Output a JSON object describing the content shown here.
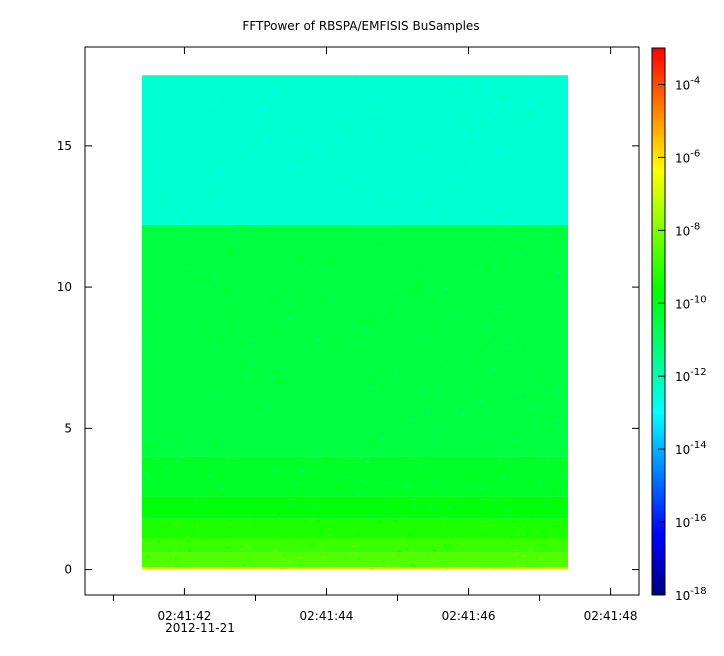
{
  "chart_data": {
    "type": "heatmap",
    "title": "FFTPower of RBSPA/EMFISIS  BuSamples",
    "xlabel": "",
    "ylabel": "",
    "x_start_label": "02:41:42",
    "x_date_label": "2012-11-21",
    "x_tick_labels": [
      "02:41:42",
      "02:41:44",
      "02:41:46",
      "02:41:48"
    ],
    "x_tick_seconds": [
      42,
      44,
      46,
      48
    ],
    "x_minor_tick_seconds": [
      41,
      43,
      45,
      47
    ],
    "xlim_seconds": [
      40.6,
      48.4
    ],
    "data_x_range_seconds": [
      41.4,
      47.4
    ],
    "y_tick_labels": [
      "0",
      "5",
      "10",
      "15"
    ],
    "y_ticks": [
      0,
      5,
      10,
      15
    ],
    "ylim": [
      -0.9,
      18.5
    ],
    "data_y_range": [
      0,
      17.5
    ],
    "colorbar": {
      "scale": "log",
      "range": [
        1e-18,
        0.001
      ],
      "colormap": "rainbow",
      "colors": [
        "#00007f",
        "#0000ff",
        "#007fff",
        "#00ffff",
        "#00ff7f",
        "#00ff00",
        "#7fff00",
        "#ffff00",
        "#ff7f00",
        "#ff0000"
      ],
      "tick_labels": [
        {
          "base": "10",
          "exp": "-4",
          "exponent": -4
        },
        {
          "base": "10",
          "exp": "-6",
          "exponent": -6
        },
        {
          "base": "10",
          "exp": "-8",
          "exponent": -8
        },
        {
          "base": "10",
          "exp": "-10",
          "exponent": -10
        },
        {
          "base": "10",
          "exp": "-12",
          "exponent": -12
        },
        {
          "base": "10",
          "exp": "-14",
          "exponent": -14
        },
        {
          "base": "10",
          "exp": "-16",
          "exponent": -16
        },
        {
          "base": "10",
          "exp": "-18",
          "exponent": -18
        }
      ]
    },
    "power_bands": [
      {
        "y_range": [
          0,
          0.08
        ],
        "log10_power": -5.8
      },
      {
        "y_range": [
          0.08,
          0.6
        ],
        "log10_power": -8.6
      },
      {
        "y_range": [
          0.6,
          1.1
        ],
        "log10_power": -8.9
      },
      {
        "y_range": [
          1.1,
          1.8
        ],
        "log10_power": -9.3
      },
      {
        "y_range": [
          1.8,
          2.6
        ],
        "log10_power": -9.8
      },
      {
        "y_range": [
          2.6,
          4.0
        ],
        "log10_power": -10.2
      },
      {
        "y_range": [
          4.0,
          12.2
        ],
        "log10_power": -10.5
      },
      {
        "y_range": [
          12.2,
          17.5
        ],
        "log10_power": -12.4
      }
    ]
  }
}
